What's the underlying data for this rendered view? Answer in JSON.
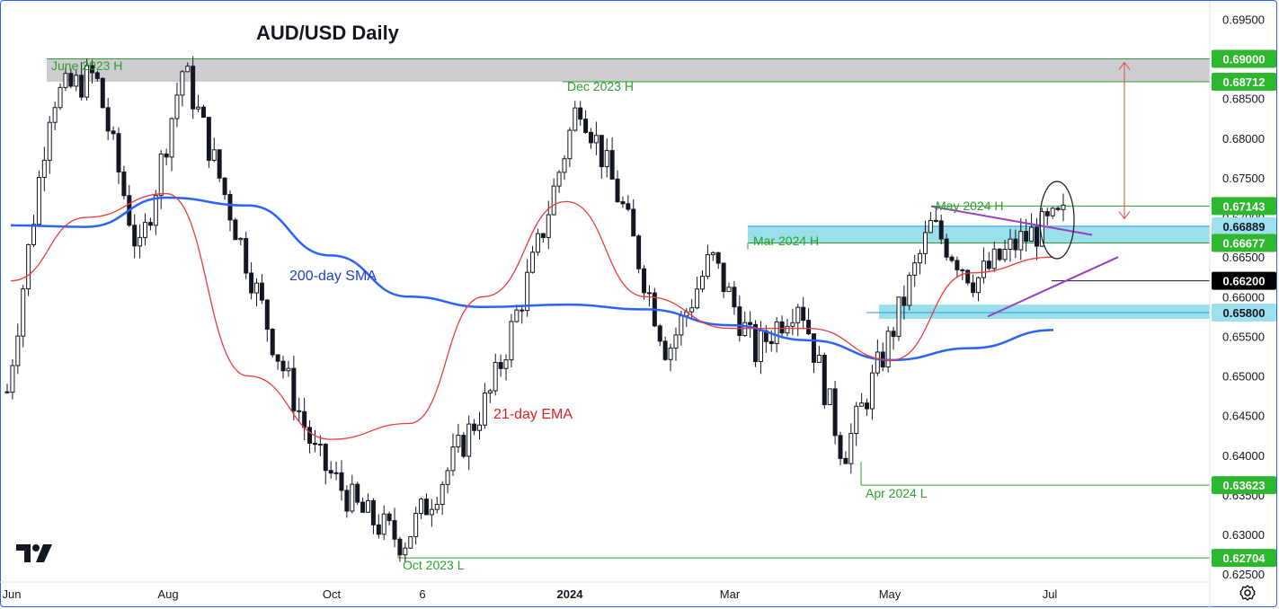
{
  "title": "AUD/USD Daily",
  "colors": {
    "green_text": "#2ca02c",
    "level_line": "#2ca02c",
    "zone_cyan": "#7fd8e6",
    "zone_gray": "#c8c8cc",
    "sma": "#2962ff",
    "ema": "#ef3b3b",
    "triangle": "#9b3fbf",
    "candle": "#131722",
    "arrow": "#e04a4a"
  },
  "chart_data": {
    "type": "candlestick",
    "y_ticks": [
      "0.69500",
      "0.69000",
      "0.68500",
      "0.68000",
      "0.67500",
      "0.67000",
      "0.66500",
      "0.66000",
      "0.65500",
      "0.65000",
      "0.64500",
      "0.64000",
      "0.63500",
      "0.63000",
      "0.62500"
    ],
    "x_ticks": [
      "Jun",
      "Aug",
      "Oct",
      "6",
      "2024",
      "Mar",
      "May",
      "Jul"
    ],
    "ylim": [
      0.624,
      0.6972
    ],
    "price_labels": [
      {
        "text": "0.69000",
        "value": 0.69,
        "style": "green"
      },
      {
        "text": "0.68712",
        "value": 0.68712,
        "style": "green"
      },
      {
        "text": "0.67143",
        "value": 0.67143,
        "style": "green"
      },
      {
        "text": "0.66889",
        "value": 0.66889,
        "style": "blue"
      },
      {
        "text": "0.66677",
        "value": 0.66677,
        "style": "green"
      },
      {
        "text": "0.66200",
        "value": 0.662,
        "style": "black"
      },
      {
        "text": "0.65800",
        "value": 0.658,
        "style": "blue"
      },
      {
        "text": "0.63623",
        "value": 0.63623,
        "style": "green"
      },
      {
        "text": "0.62704",
        "value": 0.62704,
        "style": "green"
      }
    ],
    "annotations": {
      "june_high": "June 2023 H",
      "dec_high": "Dec 2023 H",
      "may_high": "May 2024 H",
      "mar_high": "Mar 2024 H",
      "apr_low": "Apr 2024 L",
      "oct_low": "Oct 2023 L",
      "sma_label": "200-day SMA",
      "ema_label": "21-day EMA"
    },
    "sma_200": [
      {
        "x": "Jun",
        "y": 0.669
      },
      {
        "x": "Jul",
        "y": 0.6688
      },
      {
        "x": "Aug",
        "y": 0.6725
      },
      {
        "x": "Sep",
        "y": 0.6715
      },
      {
        "x": "Oct",
        "y": 0.6652
      },
      {
        "x": "Nov",
        "y": 0.66
      },
      {
        "x": "Dec",
        "y": 0.6587
      },
      {
        "x": "Jan",
        "y": 0.659
      },
      {
        "x": "Feb",
        "y": 0.6584
      },
      {
        "x": "Mar",
        "y": 0.6564
      },
      {
        "x": "Apr",
        "y": 0.6545
      },
      {
        "x": "May",
        "y": 0.652
      },
      {
        "x": "Jun",
        "y": 0.6535
      },
      {
        "x": "Jul",
        "y": 0.6558
      }
    ],
    "ema_21": [
      {
        "x": "Jun",
        "y": 0.662
      },
      {
        "x": "Jul",
        "y": 0.67
      },
      {
        "x": "Aug",
        "y": 0.673
      },
      {
        "x": "Sep",
        "y": 0.65
      },
      {
        "x": "Oct",
        "y": 0.642
      },
      {
        "x": "Nov",
        "y": 0.644
      },
      {
        "x": "Dec",
        "y": 0.66
      },
      {
        "x": "Jan",
        "y": 0.672
      },
      {
        "x": "Feb",
        "y": 0.66
      },
      {
        "x": "Mar",
        "y": 0.656
      },
      {
        "x": "Apr",
        "y": 0.656
      },
      {
        "x": "May",
        "y": 0.652
      },
      {
        "x": "Jun",
        "y": 0.663
      },
      {
        "x": "Jul",
        "y": 0.665
      }
    ],
    "close_path": [
      {
        "x": "Jun",
        "y": 0.648
      },
      {
        "x": "Jun",
        "y": 0.685
      },
      {
        "x": "Jun",
        "y": 0.688
      },
      {
        "x": "Jul",
        "y": 0.665
      },
      {
        "x": "Jul",
        "y": 0.689
      },
      {
        "x": "Aug",
        "y": 0.672
      },
      {
        "x": "Aug",
        "y": 0.655
      },
      {
        "x": "Sep",
        "y": 0.64
      },
      {
        "x": "Oct",
        "y": 0.633
      },
      {
        "x": "Oct",
        "y": 0.629
      },
      {
        "x": "Nov",
        "y": 0.638
      },
      {
        "x": "Nov",
        "y": 0.648
      },
      {
        "x": "Dec",
        "y": 0.665
      },
      {
        "x": "Dec",
        "y": 0.685
      },
      {
        "x": "Jan",
        "y": 0.671
      },
      {
        "x": "Feb",
        "y": 0.653
      },
      {
        "x": "Mar",
        "y": 0.665
      },
      {
        "x": "Mar",
        "y": 0.653
      },
      {
        "x": "Apr",
        "y": 0.66
      },
      {
        "x": "Apr",
        "y": 0.64
      },
      {
        "x": "May",
        "y": 0.654
      },
      {
        "x": "May",
        "y": 0.669
      },
      {
        "x": "Jun",
        "y": 0.662
      },
      {
        "x": "Jun",
        "y": 0.667
      },
      {
        "x": "Jul",
        "y": 0.67
      }
    ]
  }
}
